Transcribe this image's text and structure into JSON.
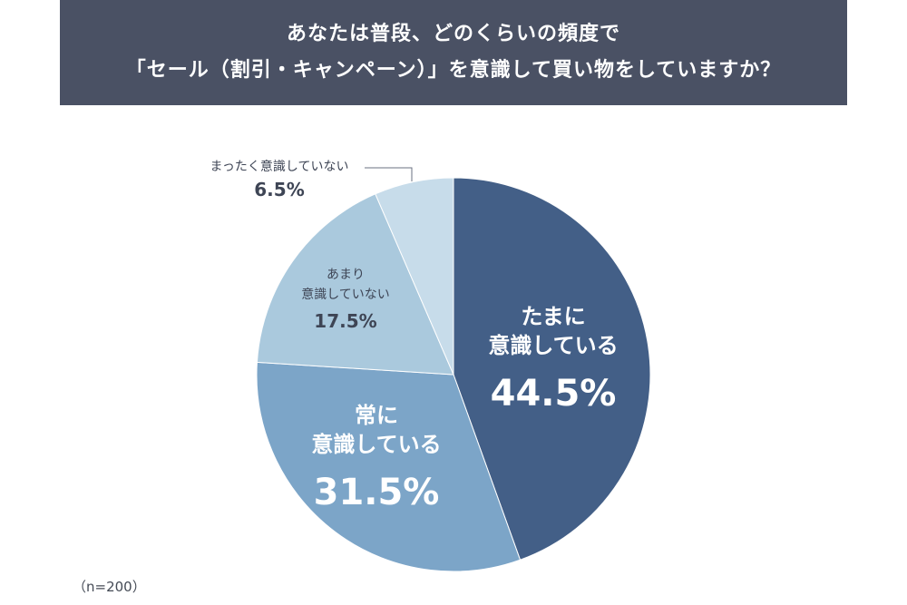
{
  "title": {
    "line1": "あなたは普段、どのくらいの頻度で",
    "line2": "「セール（割引・キャンペーン）」を意識して買い物をしていますか？"
  },
  "note": "（n=200）",
  "chart_data": {
    "type": "pie",
    "start": "12 o'clock",
    "direction": "clockwise",
    "slices": [
      {
        "label_lines": [
          "たまに",
          "意識している"
        ],
        "value": 44.5,
        "value_label": "44.5%",
        "color": "#435f87",
        "text_color": "#ffffff"
      },
      {
        "label_lines": [
          "常に",
          "意識している"
        ],
        "value": 31.5,
        "value_label": "31.5%",
        "color": "#7ca5c8",
        "text_color": "#ffffff"
      },
      {
        "label_lines": [
          "あまり",
          "意識していない"
        ],
        "value": 17.5,
        "value_label": "17.5%",
        "color": "#aac9dd",
        "text_color": "#3e4555"
      },
      {
        "label_lines": [
          "まったく意識していない"
        ],
        "value": 6.5,
        "value_label": "6.5%",
        "color": "#c7dcea",
        "text_color": "#3e4555"
      }
    ]
  }
}
